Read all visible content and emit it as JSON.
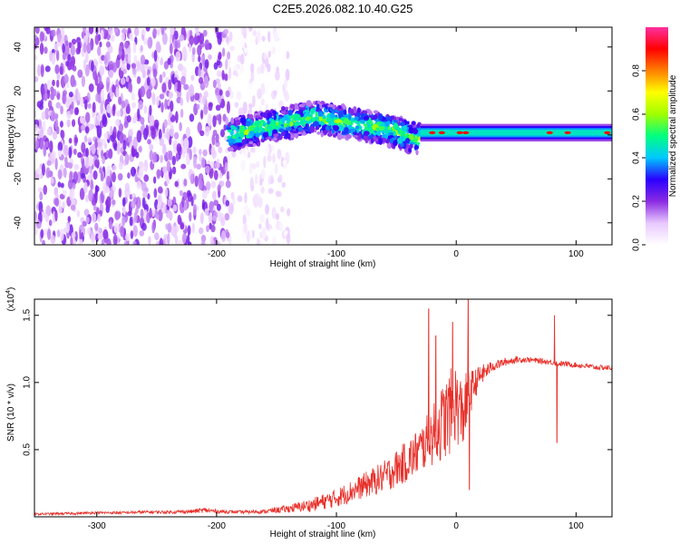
{
  "figure_title": "C2E5.2026.082.10.40.G25",
  "chart_data": [
    {
      "type": "heatmap",
      "title": "C2E5.2026.082.10.40.G25",
      "xlabel": "Height of straight line (km)",
      "ylabel": "Frequency (Hz)",
      "xlim": [
        -352,
        130
      ],
      "ylim": [
        -50,
        49
      ],
      "xticks": [
        -300,
        -200,
        -100,
        0,
        100
      ],
      "yticks": [
        -40,
        -20,
        0,
        20,
        40
      ],
      "xtick_labels": [
        "-300",
        "-200",
        "-100",
        "0",
        "100"
      ],
      "ytick_labels": [
        "-40",
        "-20",
        "0",
        "20",
        "40"
      ],
      "colorbar": {
        "label": "Normalized spectral amplitude",
        "range": [
          0,
          1
        ],
        "ticks": [
          0.0,
          0.2,
          0.4,
          0.6,
          0.8
        ],
        "tick_labels": [
          "0.0",
          "0.2",
          "0.4",
          "0.6",
          "0.8"
        ],
        "colors": [
          "#ffffff",
          "#e8c8ff",
          "#8a2be2",
          "#2a00ff",
          "#00c8ff",
          "#00ff80",
          "#a0ff00",
          "#ffff00",
          "#ff8000",
          "#ff0000",
          "#ff30a0"
        ]
      },
      "regions": [
        {
          "x": [
            -352,
            -190
          ],
          "description_value": "scattered noise, amplitude 0.05-0.2, full band"
        },
        {
          "x": [
            -190,
            -140
          ],
          "description_value": "sparse noise, amplitude 0.0-0.1"
        },
        {
          "x": [
            -190,
            -30
          ],
          "center_freq_hz": [
            0,
            8,
            3,
            -2
          ],
          "amplitude": [
            0.2,
            0.5
          ],
          "band_hz": 8
        },
        {
          "x": [
            -30,
            130
          ],
          "center_freq_hz": 1,
          "amplitude": 0.45,
          "band_hz": 5
        }
      ],
      "hot_spots_x": [
        -20,
        -12,
        3,
        8,
        78,
        93,
        126
      ]
    },
    {
      "type": "line",
      "title": "",
      "xlabel": "Height of straight line (km)",
      "ylabel": "SNR (10 * v/v)",
      "y_scale_note": "(x10",
      "y_scale_exp": "4",
      "y_scale_close": ")",
      "xlim": [
        -352,
        130
      ],
      "ylim": [
        0,
        1.62
      ],
      "xticks": [
        -300,
        -200,
        -100,
        0,
        100
      ],
      "yticks": [
        0.5,
        1.0,
        1.5
      ],
      "xtick_labels": [
        "-300",
        "-200",
        "-100",
        "0",
        "100"
      ],
      "ytick_labels": [
        "0.5",
        "1.0",
        "1.5"
      ],
      "color": "#e8302a",
      "series": [
        {
          "name": "SNR",
          "x": [
            -352,
            -320,
            -300,
            -280,
            -260,
            -240,
            -220,
            -210,
            -200,
            -180,
            -160,
            -140,
            -120,
            -100,
            -80,
            -60,
            -50,
            -40,
            -30,
            -20,
            -10,
            -5,
            0,
            5,
            10,
            15,
            20,
            30,
            40,
            50,
            60,
            70,
            80,
            85,
            90,
            100,
            110,
            120,
            130
          ],
          "y": [
            0.02,
            0.025,
            0.03,
            0.03,
            0.035,
            0.035,
            0.04,
            0.05,
            0.04,
            0.035,
            0.04,
            0.06,
            0.09,
            0.14,
            0.22,
            0.3,
            0.36,
            0.42,
            0.5,
            0.6,
            0.72,
            0.78,
            0.85,
            0.75,
            0.9,
            0.98,
            1.05,
            1.12,
            1.15,
            1.17,
            1.17,
            1.16,
            1.15,
            1.14,
            1.14,
            1.13,
            1.12,
            1.11,
            1.11
          ],
          "noise_amp": [
            0.008,
            0.01,
            0.01,
            0.01,
            0.012,
            0.012,
            0.015,
            0.02,
            0.015,
            0.012,
            0.015,
            0.03,
            0.05,
            0.07,
            0.09,
            0.12,
            0.14,
            0.16,
            0.18,
            0.22,
            0.3,
            0.32,
            0.3,
            0.28,
            0.2,
            0.12,
            0.08,
            0.04,
            0.03,
            0.025,
            0.02,
            0.02,
            0.02,
            0.02,
            0.02,
            0.02,
            0.02,
            0.02,
            0.02
          ]
        }
      ],
      "spikes": [
        {
          "x": -23,
          "y": 1.55
        },
        {
          "x": -17,
          "y": 1.35
        },
        {
          "x": -3,
          "y": 1.45
        },
        {
          "x": 10,
          "y": 1.62
        },
        {
          "x": 11,
          "y": 0.2
        },
        {
          "x": 82,
          "y": 1.5
        },
        {
          "x": 84,
          "y": 0.55
        }
      ]
    }
  ]
}
